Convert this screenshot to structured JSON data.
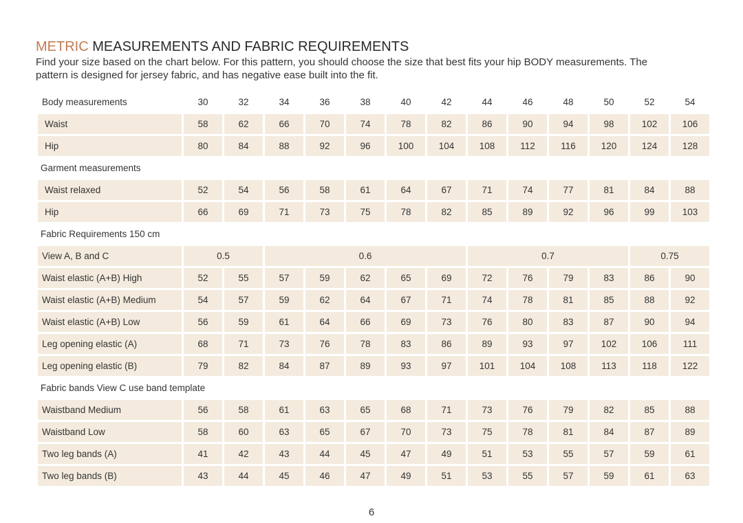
{
  "header": {
    "title_highlight": "METRIC",
    "title": "MEASUREMENTS AND FABRIC REQUIREMENTS",
    "intro_lines": [
      "Find your size based on the chart below. For this pattern, you should choose the size that best fits your hip BODY measurements.  The",
      "pattern is designed for jersey fabric, and has negative ease built into the fit."
    ]
  },
  "table": {
    "header_label": "Body measurements",
    "sizes": [
      30,
      32,
      34,
      36,
      38,
      40,
      42,
      44,
      46,
      48,
      50,
      52,
      54
    ],
    "sections": [
      {
        "rows": [
          {
            "label": "Waist",
            "values": [
              58,
              62,
              66,
              70,
              74,
              78,
              82,
              86,
              90,
              94,
              98,
              102,
              106
            ]
          },
          {
            "label": "Hip",
            "values": [
              80,
              84,
              88,
              92,
              96,
              100,
              104,
              108,
              112,
              116,
              120,
              124,
              128
            ]
          }
        ]
      },
      {
        "title": "Garment measurements",
        "rows": [
          {
            "label": "Waist relaxed",
            "values": [
              52,
              54,
              56,
              58,
              61,
              64,
              67,
              71,
              74,
              77,
              81,
              84,
              88
            ]
          },
          {
            "label": "Hip",
            "values": [
              66,
              69,
              71,
              73,
              75,
              78,
              82,
              85,
              89,
              92,
              96,
              99,
              103
            ]
          }
        ]
      },
      {
        "title": "Fabric Requirements 150 cm",
        "rows": [
          {
            "label": "View A, B and C",
            "values": [
              0.5,
              0.6,
              0.7,
              0.75
            ]
          },
          {
            "label": "Waist elastic (A+B) High",
            "values": [
              52,
              55,
              57,
              59,
              62,
              65,
              69,
              72,
              76,
              79,
              83,
              86,
              90
            ]
          },
          {
            "label": "Waist elastic (A+B) Medium",
            "values": [
              54,
              57,
              59,
              62,
              64,
              67,
              71,
              74,
              78,
              81,
              85,
              88,
              92
            ]
          },
          {
            "label": "Waist elastic (A+B) Low",
            "values": [
              56,
              59,
              61,
              64,
              66,
              69,
              73,
              76,
              80,
              83,
              87,
              90,
              94
            ]
          },
          {
            "label": "Leg opening elastic (A)",
            "values": [
              68,
              71,
              73,
              76,
              78,
              83,
              86,
              89,
              93,
              97,
              102,
              106,
              111
            ]
          },
          {
            "label": "Leg opening elastic (B)",
            "values": [
              79,
              82,
              84,
              87,
              89,
              93,
              97,
              101,
              104,
              108,
              113,
              118,
              122
            ]
          }
        ]
      },
      {
        "title": "Fabric bands View C use band template",
        "rows": [
          {
            "label": "Waistband Medium",
            "values": [
              56,
              58,
              61,
              63,
              65,
              68,
              71,
              73,
              76,
              79,
              82,
              85,
              88
            ]
          },
          {
            "label": "Waistband Low",
            "values": [
              58,
              60,
              63,
              65,
              67,
              70,
              73,
              75,
              78,
              81,
              84,
              87,
              89
            ]
          },
          {
            "label": "Two leg bands (A)",
            "values": [
              41,
              42,
              43,
              44,
              45,
              47,
              49,
              51,
              53,
              55,
              57,
              59,
              61
            ]
          },
          {
            "label": "Two leg bands (B)",
            "values": [
              43,
              44,
              45,
              46,
              47,
              49,
              51,
              53,
              55,
              57,
              59,
              61,
              63
            ]
          }
        ]
      }
    ]
  },
  "footer": {
    "page_number": 6
  }
}
